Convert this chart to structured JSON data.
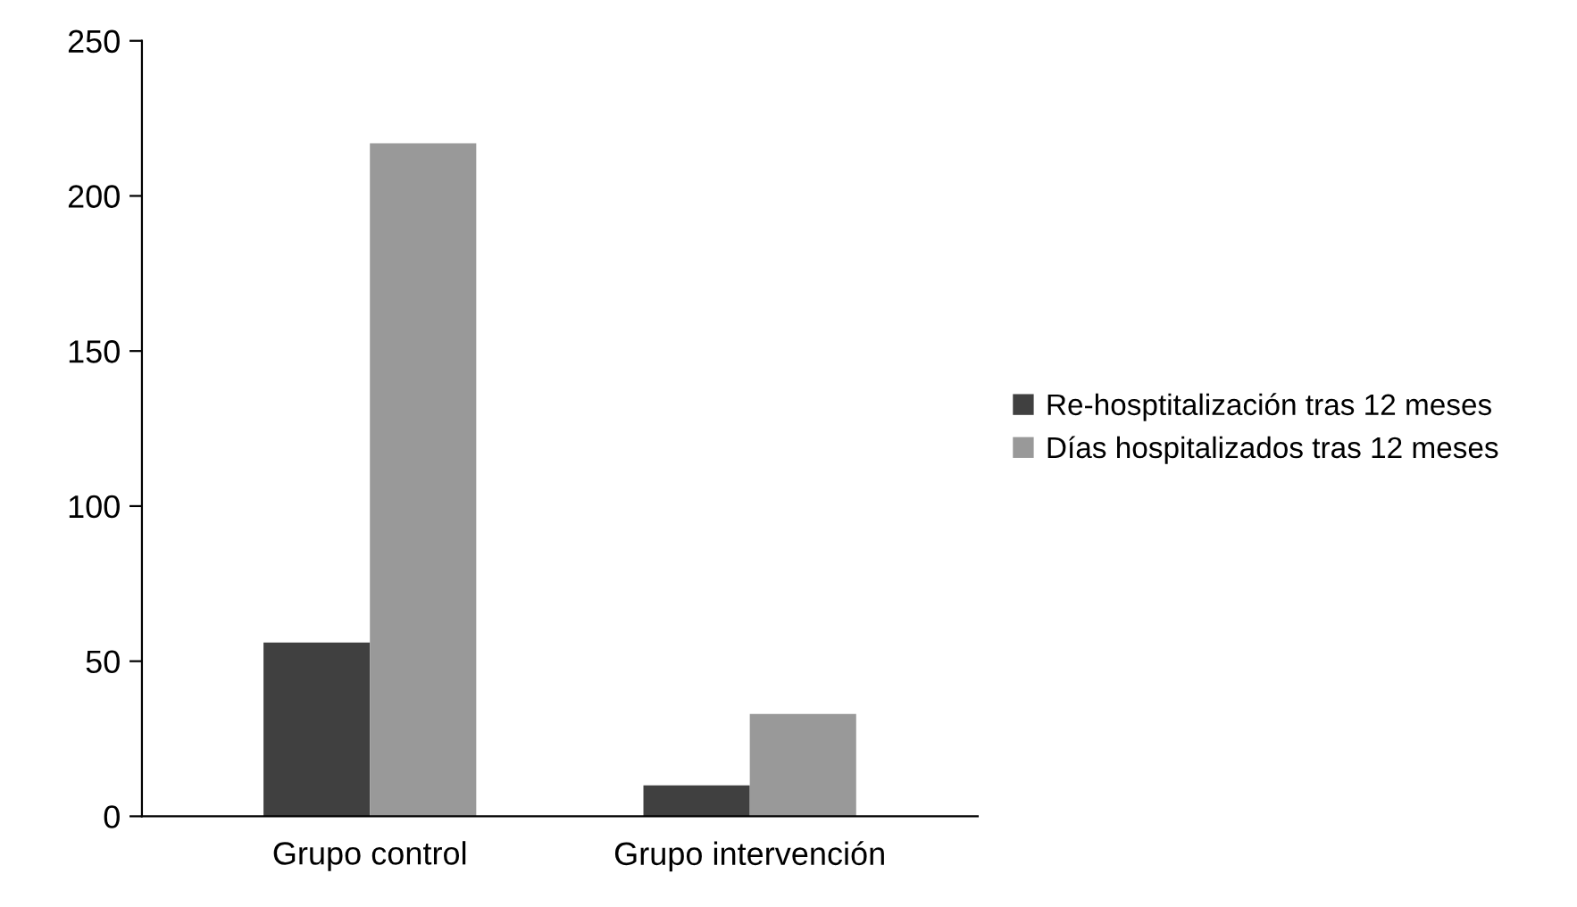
{
  "chart_data": {
    "type": "bar",
    "categories": [
      "Grupo control",
      "Grupo intervención"
    ],
    "series": [
      {
        "name": "Re-hosptitalización tras 12 meses",
        "color": "#404040",
        "values": [
          56,
          10
        ]
      },
      {
        "name": "Días hospitalizados tras 12 meses",
        "color": "#999999",
        "values": [
          217,
          33
        ]
      }
    ],
    "ylim": [
      0,
      250
    ],
    "yticks": [
      0,
      50,
      100,
      150,
      200,
      250
    ],
    "grid": false,
    "legend": "right"
  }
}
